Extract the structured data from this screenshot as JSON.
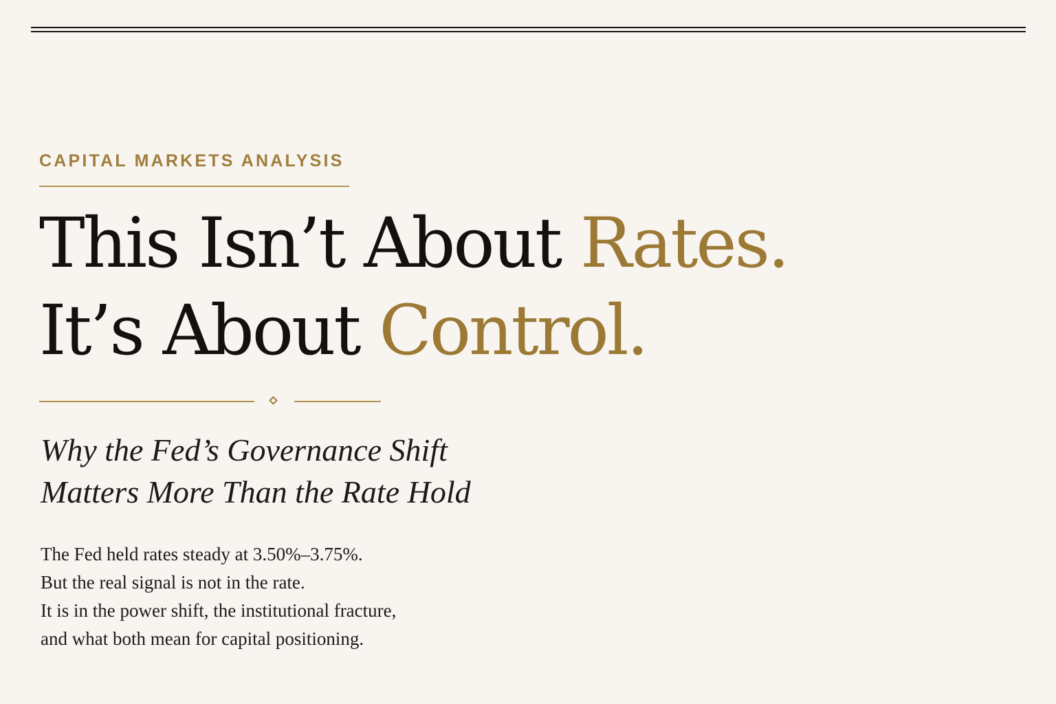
{
  "kicker": "CAPITAL MARKETS ANALYSIS",
  "headline": {
    "line1_main": "This Isn’t About ",
    "line1_accent": "Rates.",
    "line2_main": "It’s About ",
    "line2_accent": "Control."
  },
  "subtitle": [
    "Why the Fed’s Governance Shift",
    "Matters More Than the Rate Hold"
  ],
  "body": [
    "The Fed held rates steady at 3.50%–3.75%.",
    "But the real signal is not in the rate.",
    "It is in the power shift, the institutional fracture,",
    "and what both mean for capital positioning."
  ],
  "colors": {
    "background": "#f8f5f0",
    "ink": "#141210",
    "accent_gold": "#9c7a36"
  }
}
